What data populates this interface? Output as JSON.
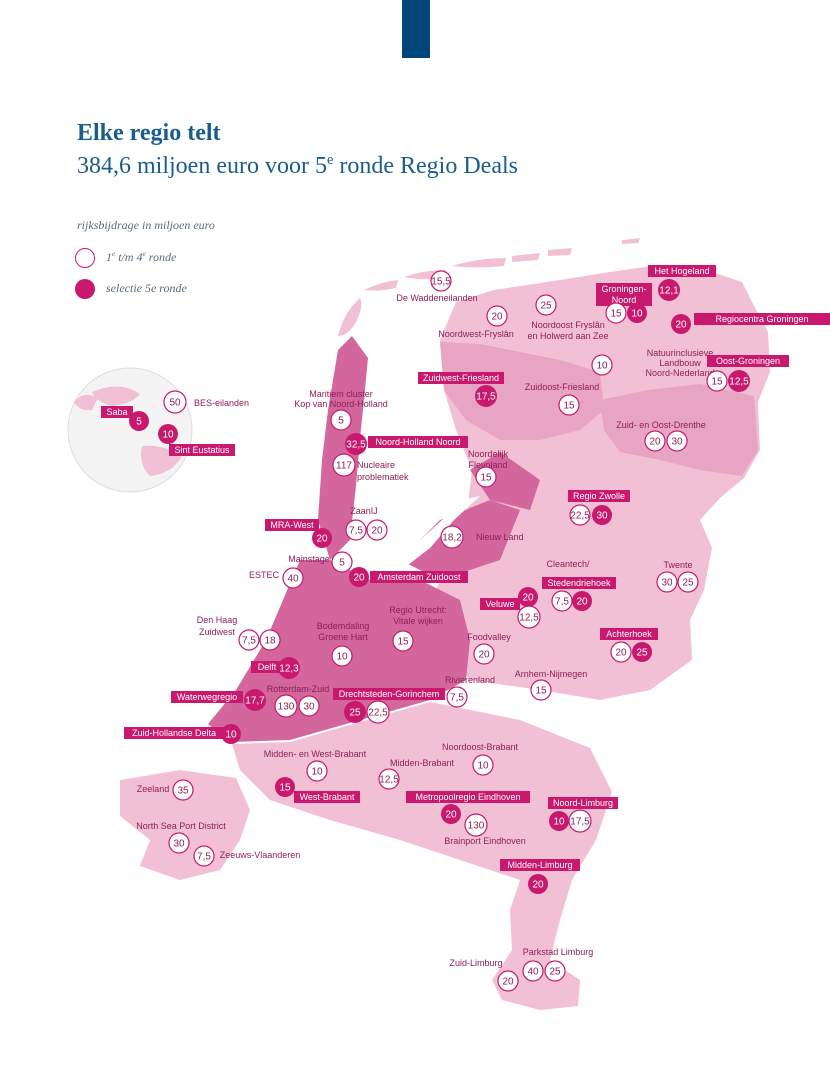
{
  "heading": {
    "title": "Elke regio telt",
    "subtitle_main": "384,6 miljoen euro voor 5",
    "subtitle_sup": "e",
    "subtitle_rest": " ronde Regio Deals"
  },
  "legend": {
    "title": "rijksbijdrage in miljoen euro",
    "round_1_4": {
      "pre": "1",
      "sup1": "e",
      "mid": " t/m 4",
      "sup2": "e",
      "post": " ronde"
    },
    "round_5": "selectie 5e ronde"
  },
  "colors": {
    "magenta": "#c8196e",
    "round_1_4_fill": "#ffffff",
    "round_5_fill": "#c8196e",
    "land_light": "#f2c0d5",
    "land_mid": "#e7a4c3",
    "land_dark": "#d3679d",
    "label_text": "#8c1f56",
    "title_blue": "#1a5d8c",
    "top_bar": "#01457a"
  },
  "plain_labels": [
    {
      "id": "waddeneilanden",
      "text": "De Waddeneilanden"
    },
    {
      "id": "nw-fryslan",
      "text": "Noordwest-Fryslân"
    },
    {
      "id": "no-fryslan-1",
      "text": "Noordoost Fryslân"
    },
    {
      "id": "no-fryslan-2",
      "text": "en Holwerd aan Zee"
    },
    {
      "id": "natuur-1",
      "text": "Natuurinclusieve"
    },
    {
      "id": "natuur-2",
      "text": "Landbouw"
    },
    {
      "id": "natuur-3",
      "text": "Noord-Nederland"
    },
    {
      "id": "zo-friesland",
      "text": "Zuidoost-Friesland"
    },
    {
      "id": "maritiem-1",
      "text": "Maritiem cluster"
    },
    {
      "id": "maritiem-2",
      "text": "Kop van Noord-Holland"
    },
    {
      "id": "bes",
      "text": "BES-eilanden"
    },
    {
      "id": "nucleaire-1",
      "text": "Nucleaire"
    },
    {
      "id": "nucleaire-2",
      "text": "problematiek"
    },
    {
      "id": "noordelijk-1",
      "text": "Noordelijk"
    },
    {
      "id": "noordelijk-2",
      "text": "Flevoland"
    },
    {
      "id": "zuid-oost-drenthe",
      "text": "Zuid- en Oost-Drenthe"
    },
    {
      "id": "zaanij",
      "text": "ZaanIJ"
    },
    {
      "id": "nieuw-land",
      "text": "Nieuw Land"
    },
    {
      "id": "mainstage",
      "text": "Mainstage"
    },
    {
      "id": "estec",
      "text": "ESTEC"
    },
    {
      "id": "cleantech",
      "text": "Cleantech/"
    },
    {
      "id": "twente",
      "text": "Twente"
    },
    {
      "id": "den-haag-1",
      "text": "Den Haag"
    },
    {
      "id": "den-haag-2",
      "text": "Zuidwest"
    },
    {
      "id": "regio-utrecht-1",
      "text": "Regio Utrecht:"
    },
    {
      "id": "regio-utrecht-2",
      "text": "Vitale wijken"
    },
    {
      "id": "bodemdaling-1",
      "text": "Bodemdaling"
    },
    {
      "id": "bodemdaling-2",
      "text": "Groene Hart"
    },
    {
      "id": "foodvalley",
      "text": "Foodvalley"
    },
    {
      "id": "rotterdam-zuid",
      "text": "Rotterdam-Zuid"
    },
    {
      "id": "rivierenland",
      "text": "Rivierenland"
    },
    {
      "id": "arnhem",
      "text": "Arnhem-Nijmegen"
    },
    {
      "id": "midden-west-brabant",
      "text": "Midden- en West-Brabant"
    },
    {
      "id": "noordoost-brabant",
      "text": "Noordoost-Brabant"
    },
    {
      "id": "midden-brabant",
      "text": "Midden-Brabant"
    },
    {
      "id": "zeeland",
      "text": "Zeeland"
    },
    {
      "id": "north-sea",
      "text": "North Sea Port District"
    },
    {
      "id": "zeeuws-vlaanderen",
      "text": "Zeeuws-Vlaanderen"
    },
    {
      "id": "brainport",
      "text": "Brainport Eindhoven"
    },
    {
      "id": "parkstad",
      "text": "Parkstad Limburg"
    },
    {
      "id": "zuid-limburg",
      "text": "Zuid-Limburg"
    }
  ],
  "tag_labels": [
    {
      "id": "het-hogeland",
      "text": "Het Hogeland"
    },
    {
      "id": "groningen-noord-1",
      "text": "Groningen-"
    },
    {
      "id": "groningen-noord-2",
      "text": "Noord"
    },
    {
      "id": "regiocentra",
      "text": "Regiocentra Groningen"
    },
    {
      "id": "oost-groningen",
      "text": "Oost-Groningen"
    },
    {
      "id": "zuidwest-friesland",
      "text": "Zuidwest-Friesland"
    },
    {
      "id": "saba",
      "text": "Saba"
    },
    {
      "id": "sint-eustatius",
      "text": "Sint Eustatius"
    },
    {
      "id": "noord-holland-noord",
      "text": "Noord-Holland Noord"
    },
    {
      "id": "regio-zwolle",
      "text": "Regio Zwolle"
    },
    {
      "id": "mra-west",
      "text": "MRA-West"
    },
    {
      "id": "amsterdam-zuidoost",
      "text": "Amsterdam Zuidoost"
    },
    {
      "id": "stedendriehoek",
      "text": "Stedendriehoek"
    },
    {
      "id": "veluwe",
      "text": "Veluwe"
    },
    {
      "id": "achterhoek",
      "text": "Achterhoek"
    },
    {
      "id": "delft",
      "text": "Delft"
    },
    {
      "id": "waterwegregio",
      "text": "Waterwegregio"
    },
    {
      "id": "drechtsteden",
      "text": "Drechtsteden-Gorinchem"
    },
    {
      "id": "zuid-hollandse-delta",
      "text": "Zuid-Hollandse Delta"
    },
    {
      "id": "west-brabant",
      "text": "West-Brabant"
    },
    {
      "id": "metropoolregio",
      "text": "Metropoolregio Eindhoven"
    },
    {
      "id": "noord-limburg",
      "text": "Noord-Limburg"
    },
    {
      "id": "midden-limburg",
      "text": "Midden-Limburg"
    }
  ],
  "amounts": [
    {
      "id": "waddeneilanden",
      "value": "15,5",
      "round": "1-4"
    },
    {
      "id": "nw-fryslan",
      "value": "20",
      "round": "1-4"
    },
    {
      "id": "no-fryslan",
      "value": "25",
      "round": "1-4"
    },
    {
      "id": "het-hogeland",
      "value": "12,1",
      "round": "5"
    },
    {
      "id": "groningen-noord-a",
      "value": "15",
      "round": "1-4"
    },
    {
      "id": "groningen-noord-b",
      "value": "10",
      "round": "5"
    },
    {
      "id": "regiocentra",
      "value": "20",
      "round": "5"
    },
    {
      "id": "natuur",
      "value": "10",
      "round": "1-4"
    },
    {
      "id": "oost-groningen-a",
      "value": "15",
      "round": "1-4"
    },
    {
      "id": "oost-groningen-b",
      "value": "12,5",
      "round": "5"
    },
    {
      "id": "zuidwest-friesland",
      "value": "17,5",
      "round": "5"
    },
    {
      "id": "zo-friesland",
      "value": "15",
      "round": "1-4"
    },
    {
      "id": "bes",
      "value": "50",
      "round": "1-4"
    },
    {
      "id": "saba",
      "value": "5",
      "round": "5"
    },
    {
      "id": "sint-eustatius",
      "value": "10",
      "round": "5"
    },
    {
      "id": "maritiem",
      "value": "5",
      "round": "1-4"
    },
    {
      "id": "noord-holland-noord",
      "value": "32,5",
      "round": "5"
    },
    {
      "id": "nucleaire",
      "value": "117",
      "round": "1-4"
    },
    {
      "id": "noordelijk-flevoland",
      "value": "15",
      "round": "1-4"
    },
    {
      "id": "zuid-oost-drenthe-a",
      "value": "20",
      "round": "1-4"
    },
    {
      "id": "zuid-oost-drenthe-b",
      "value": "30",
      "round": "1-4"
    },
    {
      "id": "regio-zwolle-a",
      "value": "22,5",
      "round": "1-4"
    },
    {
      "id": "regio-zwolle-b",
      "value": "30",
      "round": "5"
    },
    {
      "id": "zaanij-a",
      "value": "7,5",
      "round": "1-4"
    },
    {
      "id": "zaanij-b",
      "value": "20",
      "round": "1-4"
    },
    {
      "id": "mra-west",
      "value": "20",
      "round": "5"
    },
    {
      "id": "nieuw-land",
      "value": "18,2",
      "round": "1-4"
    },
    {
      "id": "mainstage",
      "value": "5",
      "round": "1-4"
    },
    {
      "id": "estec",
      "value": "40",
      "round": "1-4"
    },
    {
      "id": "amsterdam-zuidoost",
      "value": "20",
      "round": "5"
    },
    {
      "id": "veluwe-a",
      "value": "20",
      "round": "5"
    },
    {
      "id": "veluwe-b",
      "value": "12,5",
      "round": "1-4"
    },
    {
      "id": "stedendriehoek-a",
      "value": "7,5",
      "round": "1-4"
    },
    {
      "id": "stedendriehoek-b",
      "value": "20",
      "round": "5"
    },
    {
      "id": "twente-a",
      "value": "30",
      "round": "1-4"
    },
    {
      "id": "twente-b",
      "value": "25",
      "round": "1-4"
    },
    {
      "id": "den-haag-a",
      "value": "7,5",
      "round": "1-4"
    },
    {
      "id": "den-haag-b",
      "value": "18",
      "round": "1-4"
    },
    {
      "id": "regio-utrecht",
      "value": "15",
      "round": "1-4"
    },
    {
      "id": "bodemdaling",
      "value": "10",
      "round": "1-4"
    },
    {
      "id": "foodvalley",
      "value": "20",
      "round": "1-4"
    },
    {
      "id": "achterhoek-a",
      "value": "20",
      "round": "1-4"
    },
    {
      "id": "achterhoek-b",
      "value": "25",
      "round": "5"
    },
    {
      "id": "delft",
      "value": "12,3",
      "round": "5"
    },
    {
      "id": "waterwegregio",
      "value": "17,7",
      "round": "5"
    },
    {
      "id": "rotterdam-zuid-a",
      "value": "130",
      "round": "1-4"
    },
    {
      "id": "rotterdam-zuid-b",
      "value": "30",
      "round": "1-4"
    },
    {
      "id": "drechtsteden-a",
      "value": "25",
      "round": "5"
    },
    {
      "id": "drechtsteden-b",
      "value": "22,5",
      "round": "1-4"
    },
    {
      "id": "rivierenland",
      "value": "7,5",
      "round": "1-4"
    },
    {
      "id": "arnhem",
      "value": "15",
      "round": "1-4"
    },
    {
      "id": "zuid-hollandse-delta",
      "value": "10",
      "round": "5"
    },
    {
      "id": "midden-west-brabant",
      "value": "10",
      "round": "1-4"
    },
    {
      "id": "noordoost-brabant",
      "value": "10",
      "round": "1-4"
    },
    {
      "id": "midden-brabant",
      "value": "12,5",
      "round": "1-4"
    },
    {
      "id": "zeeland",
      "value": "35",
      "round": "1-4"
    },
    {
      "id": "west-brabant",
      "value": "15",
      "round": "5"
    },
    {
      "id": "metropoolregio",
      "value": "20",
      "round": "5"
    },
    {
      "id": "brainport",
      "value": "130",
      "round": "1-4"
    },
    {
      "id": "noord-limburg-a",
      "value": "10",
      "round": "5"
    },
    {
      "id": "noord-limburg-b",
      "value": "17,5",
      "round": "1-4"
    },
    {
      "id": "north-sea",
      "value": "30",
      "round": "1-4"
    },
    {
      "id": "zeeuws-vlaanderen",
      "value": "7,5",
      "round": "1-4"
    },
    {
      "id": "midden-limburg",
      "value": "20",
      "round": "5"
    },
    {
      "id": "zuid-limburg",
      "value": "20",
      "round": "1-4"
    },
    {
      "id": "parkstad-a",
      "value": "40",
      "round": "1-4"
    },
    {
      "id": "parkstad-b",
      "value": "25",
      "round": "1-4"
    }
  ]
}
